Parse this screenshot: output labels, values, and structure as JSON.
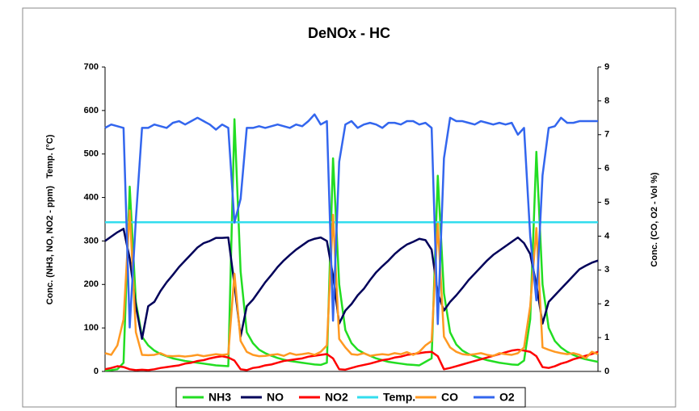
{
  "chart_data": {
    "type": "line",
    "title": "DeNOx - HC",
    "ylabel": "Conc. (NH3, NO, NO2 - ppm)   Temp. (°C)",
    "y2label": "Conc. (CO, O2 - Vol %)",
    "ylim": [
      0,
      700
    ],
    "yticks": [
      0,
      100,
      200,
      300,
      400,
      500,
      600,
      700
    ],
    "y2lim": [
      0,
      9
    ],
    "y2ticks": [
      0,
      1,
      2,
      3,
      4,
      5,
      6,
      7,
      8,
      9
    ],
    "legend": "bottom",
    "series": [
      {
        "name": "NH3",
        "color": "#22dd22",
        "values": [
          2,
          3,
          5,
          20,
          425,
          160,
          80,
          60,
          48,
          40,
          35,
          30,
          27,
          24,
          22,
          20,
          18,
          16,
          14,
          13,
          12,
          580,
          230,
          90,
          65,
          50,
          42,
          36,
          31,
          27,
          24,
          22,
          20,
          18,
          16,
          15,
          20,
          490,
          200,
          95,
          65,
          50,
          42,
          36,
          30,
          26,
          22,
          20,
          18,
          16,
          15,
          14,
          22,
          30,
          450,
          180,
          90,
          62,
          48,
          40,
          35,
          30,
          26,
          23,
          20,
          18,
          16,
          15,
          25,
          120,
          505,
          200,
          100,
          70,
          55,
          45,
          38,
          32,
          28,
          25,
          22
        ]
      },
      {
        "name": "NO",
        "color": "#00005a",
        "values": [
          300,
          310,
          320,
          328,
          260,
          150,
          75,
          150,
          160,
          185,
          205,
          222,
          240,
          255,
          270,
          285,
          295,
          300,
          307,
          307,
          308,
          200,
          80,
          150,
          165,
          185,
          205,
          222,
          240,
          255,
          268,
          280,
          290,
          300,
          305,
          308,
          300,
          220,
          110,
          140,
          155,
          175,
          190,
          210,
          228,
          242,
          255,
          270,
          282,
          292,
          298,
          305,
          302,
          280,
          180,
          140,
          160,
          175,
          192,
          210,
          225,
          240,
          255,
          268,
          278,
          288,
          298,
          308,
          295,
          270,
          200,
          110,
          160,
          175,
          190,
          205,
          220,
          235,
          243,
          250,
          255
        ]
      },
      {
        "name": "NO2",
        "color": "#ff0000",
        "values": [
          5,
          8,
          12,
          10,
          5,
          3,
          4,
          3,
          5,
          8,
          10,
          12,
          14,
          18,
          20,
          24,
          26,
          30,
          33,
          35,
          32,
          25,
          5,
          3,
          8,
          10,
          14,
          16,
          20,
          24,
          26,
          28,
          30,
          34,
          36,
          38,
          40,
          30,
          5,
          4,
          8,
          12,
          15,
          18,
          22,
          26,
          28,
          32,
          34,
          38,
          40,
          42,
          44,
          45,
          35,
          5,
          8,
          12,
          16,
          20,
          24,
          28,
          32,
          36,
          40,
          44,
          48,
          50,
          48,
          45,
          35,
          10,
          8,
          12,
          18,
          22,
          28,
          32,
          36,
          40,
          45
        ]
      },
      {
        "name": "Temp.",
        "color": "#33ddee",
        "values": [
          343,
          343,
          343,
          343,
          343,
          343,
          343,
          343,
          343,
          343,
          343,
          343,
          343,
          343,
          343,
          343,
          343,
          343,
          343,
          343,
          343,
          343,
          343,
          343,
          343,
          343,
          343,
          343,
          343,
          343,
          343,
          343,
          343,
          343,
          343,
          343,
          343,
          343,
          343,
          343,
          343,
          343,
          343,
          343,
          343,
          343,
          343,
          343,
          343,
          343,
          343,
          343,
          343,
          343,
          343,
          343,
          343,
          343,
          343,
          343,
          343,
          343,
          343,
          343,
          343,
          343,
          343,
          343,
          343,
          343,
          343,
          343,
          343,
          343,
          343,
          343,
          343,
          343,
          343,
          343,
          343
        ]
      },
      {
        "name": "CO",
        "color": "#ff9922",
        "axis": "y2",
        "values": [
          0.54,
          0.49,
          0.77,
          1.54,
          4.76,
          1.16,
          0.49,
          0.48,
          0.49,
          0.54,
          0.46,
          0.45,
          0.46,
          0.44,
          0.46,
          0.49,
          0.45,
          0.48,
          0.51,
          0.49,
          0.51,
          2.89,
          0.9,
          0.58,
          0.49,
          0.45,
          0.46,
          0.49,
          0.51,
          0.46,
          0.54,
          0.49,
          0.51,
          0.54,
          0.49,
          0.58,
          0.77,
          4.63,
          0.96,
          0.71,
          0.51,
          0.49,
          0.54,
          0.46,
          0.49,
          0.51,
          0.49,
          0.54,
          0.51,
          0.57,
          0.49,
          0.58,
          0.77,
          0.9,
          4.37,
          1.03,
          0.71,
          0.58,
          0.51,
          0.49,
          0.51,
          0.54,
          0.49,
          0.46,
          0.54,
          0.51,
          0.49,
          0.54,
          0.71,
          1.93,
          4.24,
          0.71,
          0.64,
          0.58,
          0.54,
          0.51,
          0.54,
          0.49,
          0.39,
          0.58,
          0.51
        ]
      },
      {
        "name": "O2",
        "color": "#3366ee",
        "axis": "y2",
        "values": [
          7.2,
          7.3,
          7.25,
          7.2,
          1.3,
          4.5,
          7.2,
          7.2,
          7.3,
          7.25,
          7.2,
          7.35,
          7.4,
          7.3,
          7.4,
          7.5,
          7.4,
          7.3,
          7.15,
          7.3,
          7.2,
          4.4,
          5.1,
          7.2,
          7.2,
          7.25,
          7.2,
          7.25,
          7.3,
          7.25,
          7.2,
          7.3,
          7.25,
          7.4,
          7.6,
          7.3,
          7.4,
          1.5,
          6.2,
          7.3,
          7.4,
          7.2,
          7.3,
          7.35,
          7.3,
          7.2,
          7.35,
          7.35,
          7.3,
          7.4,
          7.4,
          7.3,
          7.35,
          7.2,
          1.4,
          6.3,
          7.5,
          7.4,
          7.4,
          7.35,
          7.3,
          7.4,
          7.35,
          7.3,
          7.35,
          7.3,
          7.35,
          7.0,
          7.2,
          4.0,
          2.1,
          5.8,
          7.2,
          7.25,
          7.5,
          7.35,
          7.35,
          7.4,
          7.4,
          7.4,
          7.4
        ]
      }
    ]
  }
}
